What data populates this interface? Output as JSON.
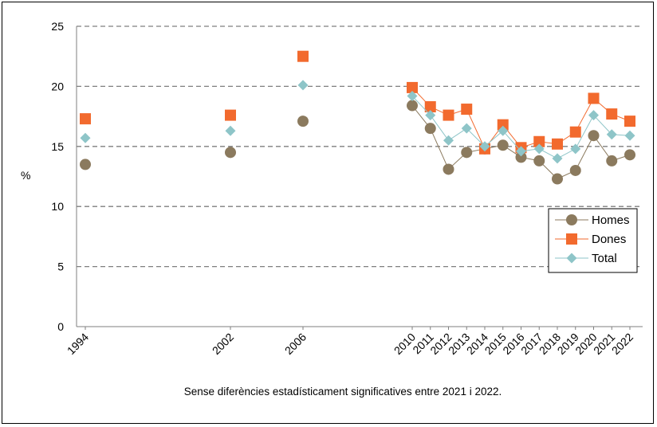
{
  "chart_data": {
    "type": "line",
    "x": [
      "1994",
      "2002",
      "2006",
      "2010",
      "2011",
      "2012",
      "2013",
      "2014",
      "2015",
      "2016",
      "2017",
      "2018",
      "2019",
      "2020",
      "2021",
      "2022"
    ],
    "series": [
      {
        "name": "Homes",
        "color": "#8b7a5e",
        "marker": "circle",
        "values": [
          13.5,
          14.5,
          17.1,
          18.4,
          16.5,
          13.1,
          14.5,
          14.8,
          15.1,
          14.1,
          13.8,
          12.3,
          13.0,
          15.9,
          13.8,
          14.3
        ]
      },
      {
        "name": "Dones",
        "color": "#f26a2e",
        "marker": "square",
        "values": [
          17.3,
          17.6,
          22.5,
          19.9,
          18.3,
          17.6,
          18.1,
          14.8,
          16.8,
          14.9,
          15.4,
          15.2,
          16.2,
          19.0,
          17.7,
          17.1
        ]
      },
      {
        "name": "Total",
        "color": "#8ec5c8",
        "marker": "diamond",
        "values": [
          15.7,
          16.3,
          20.1,
          19.2,
          17.6,
          15.5,
          16.5,
          15.0,
          16.3,
          14.6,
          14.8,
          14.0,
          14.8,
          17.6,
          16.0,
          15.9
        ]
      }
    ],
    "connected_from": "2010",
    "ylabel": "%",
    "ylim": [
      0,
      25
    ],
    "yticks": [
      "0",
      "5",
      "10",
      "15",
      "20",
      "25"
    ],
    "grid": "horizontal dashed",
    "legend": "right"
  },
  "note": "Sense diferències estadísticament  significatives entre 2021 i 2022."
}
